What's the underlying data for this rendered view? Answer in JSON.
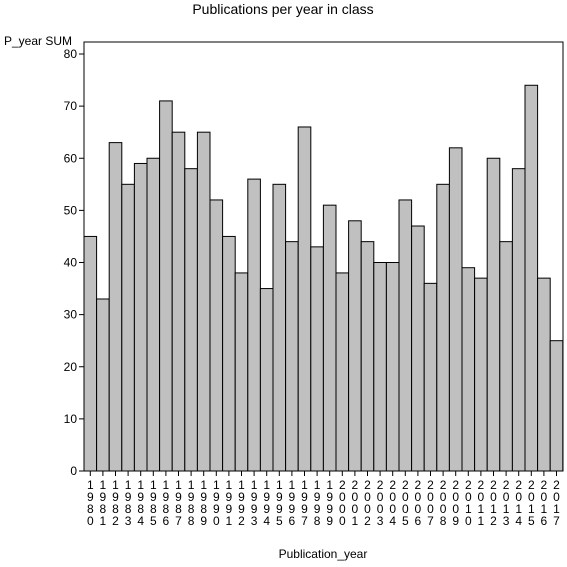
{
  "chart_data": {
    "type": "bar",
    "title": "Publications per year in class",
    "ylabel": "P_year SUM",
    "xlabel": "Publication_year",
    "ylim": [
      0,
      80
    ],
    "yticks": [
      0,
      10,
      20,
      30,
      40,
      50,
      60,
      70,
      80
    ],
    "grid": false,
    "bar_color": "#c0c0c0",
    "bar_outline_color": "#000000",
    "categories": [
      "1980",
      "1981",
      "1982",
      "1983",
      "1984",
      "1985",
      "1986",
      "1987",
      "1988",
      "1989",
      "1990",
      "1991",
      "1992",
      "1993",
      "1994",
      "1995",
      "1996",
      "1997",
      "1998",
      "1999",
      "2000",
      "2001",
      "2002",
      "2003",
      "2004",
      "2005",
      "2006",
      "2007",
      "2008",
      "2009",
      "2010",
      "2011",
      "2012",
      "2013",
      "2014",
      "2015",
      "2016",
      "2017"
    ],
    "values": [
      45,
      33,
      63,
      55,
      59,
      60,
      71,
      65,
      58,
      65,
      52,
      45,
      38,
      56,
      35,
      55,
      44,
      66,
      43,
      51,
      38,
      48,
      44,
      40,
      40,
      52,
      47,
      36,
      55,
      62,
      39,
      37,
      60,
      44,
      58,
      74,
      37,
      25
    ]
  }
}
